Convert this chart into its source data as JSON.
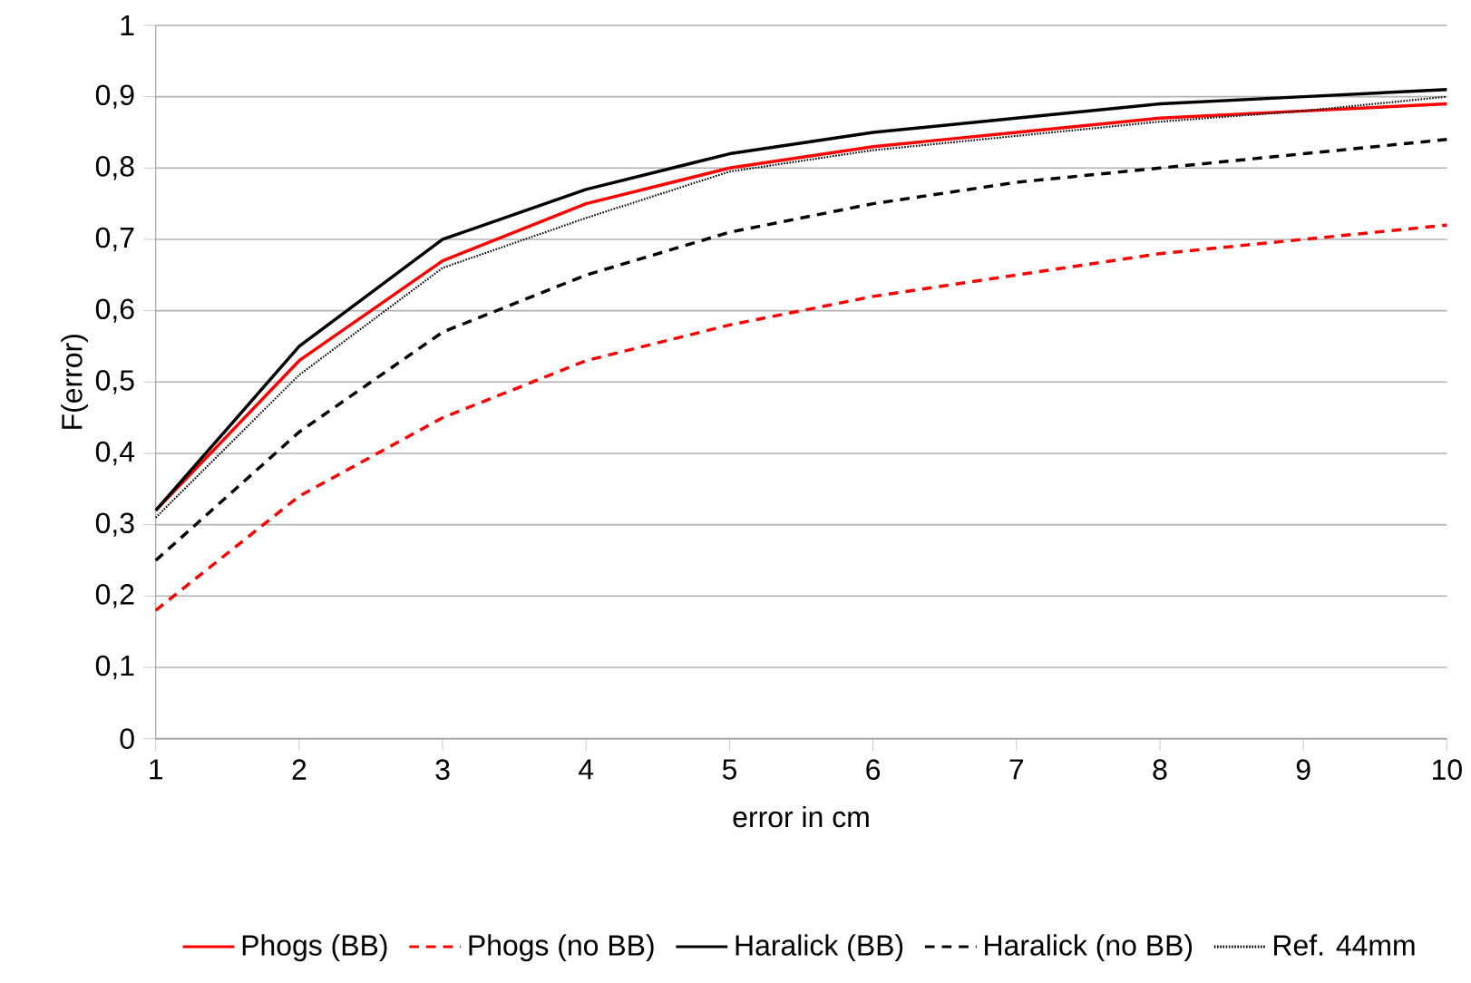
{
  "chart_data": {
    "type": "line",
    "xlabel": "error in cm",
    "ylabel": "F(error)",
    "x": [
      1,
      2,
      3,
      4,
      5,
      6,
      7,
      8,
      9,
      10
    ],
    "xlim": [
      1,
      10
    ],
    "xticks": [
      1,
      2,
      3,
      4,
      5,
      6,
      7,
      8,
      9,
      10
    ],
    "ylim": [
      0,
      1
    ],
    "yticks": [
      {
        "value": 0,
        "label": "0"
      },
      {
        "value": 0.1,
        "label": "0,1"
      },
      {
        "value": 0.2,
        "label": "0,2"
      },
      {
        "value": 0.3,
        "label": "0,3"
      },
      {
        "value": 0.4,
        "label": "0,4"
      },
      {
        "value": 0.5,
        "label": "0,5"
      },
      {
        "value": 0.6,
        "label": "0,6"
      },
      {
        "value": 0.7,
        "label": "0,7"
      },
      {
        "value": 0.8,
        "label": "0,8"
      },
      {
        "value": 0.9,
        "label": "0,9"
      },
      {
        "value": 1,
        "label": "1"
      }
    ],
    "grid": "y",
    "legend": "bottom",
    "marker": "none",
    "series": [
      {
        "name": "Phogs (BB)",
        "color": "#ff0000",
        "line_style": "solid",
        "values": [
          0.32,
          0.53,
          0.67,
          0.75,
          0.8,
          0.83,
          0.85,
          0.87,
          0.88,
          0.89
        ]
      },
      {
        "name": "Phogs (no BB)",
        "color": "#ff0000",
        "line_style": "dashed",
        "values": [
          0.18,
          0.34,
          0.45,
          0.53,
          0.58,
          0.62,
          0.65,
          0.68,
          0.7,
          0.72
        ]
      },
      {
        "name": "Haralick (BB)",
        "color": "#000000",
        "line_style": "solid",
        "values": [
          0.32,
          0.55,
          0.7,
          0.77,
          0.82,
          0.85,
          0.87,
          0.89,
          0.9,
          0.91
        ]
      },
      {
        "name": "Haralick (no BB)",
        "color": "#000000",
        "line_style": "dashed",
        "values": [
          0.25,
          0.43,
          0.57,
          0.65,
          0.71,
          0.75,
          0.78,
          0.8,
          0.82,
          0.84
        ]
      },
      {
        "name": "Ref. 44mm",
        "color": "#000000",
        "line_style": "dotted",
        "values": [
          0.31,
          0.51,
          0.66,
          0.73,
          0.795,
          0.825,
          0.845,
          0.865,
          0.88,
          0.9
        ]
      }
    ]
  }
}
